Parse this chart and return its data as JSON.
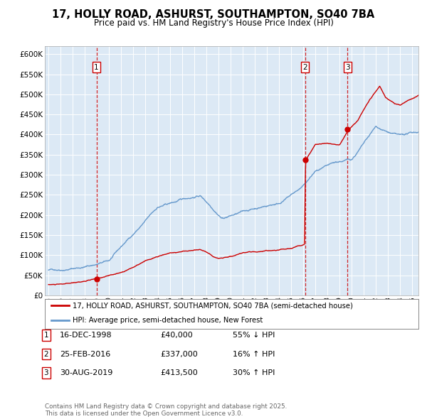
{
  "title": "17, HOLLY ROAD, ASHURST, SOUTHAMPTON, SO40 7BA",
  "subtitle": "Price paid vs. HM Land Registry's House Price Index (HPI)",
  "bg_color": "#dce9f5",
  "red_line_label": "17, HOLLY ROAD, ASHURST, SOUTHAMPTON, SO40 7BA (semi-detached house)",
  "blue_line_label": "HPI: Average price, semi-detached house, New Forest",
  "footer": "Contains HM Land Registry data © Crown copyright and database right 2025.\nThis data is licensed under the Open Government Licence v3.0.",
  "transactions": [
    {
      "num": 1,
      "date": "16-DEC-1998",
      "price": 40000,
      "pct": "55%",
      "dir": "↓",
      "year": 1998.96
    },
    {
      "num": 2,
      "date": "25-FEB-2016",
      "price": 337000,
      "pct": "16%",
      "dir": "↑",
      "year": 2016.15
    },
    {
      "num": 3,
      "date": "30-AUG-2019",
      "price": 413500,
      "pct": "30%",
      "dir": "↑",
      "year": 2019.66
    }
  ],
  "ylim": [
    0,
    620000
  ],
  "yticks": [
    0,
    50000,
    100000,
    150000,
    200000,
    250000,
    300000,
    350000,
    400000,
    450000,
    500000,
    550000,
    600000
  ],
  "xlim_start": 1994.7,
  "xlim_end": 2025.5,
  "red_color": "#cc0000",
  "blue_color": "#6699cc",
  "marker_color": "#cc0000",
  "dashed_color": "#cc0000",
  "box_color": "#cc0000"
}
